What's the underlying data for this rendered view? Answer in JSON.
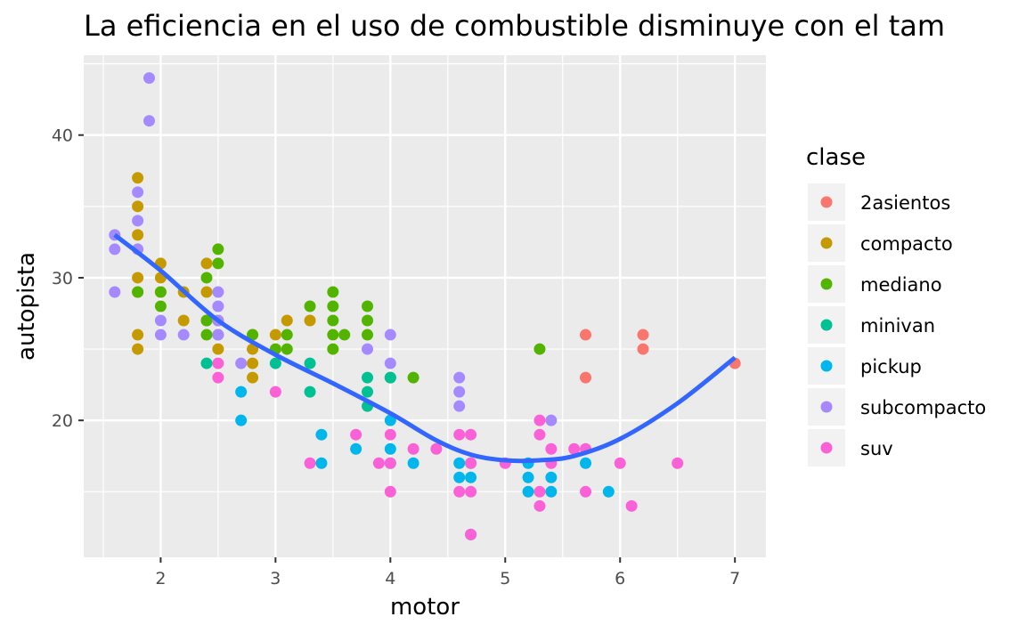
{
  "chart_data": {
    "type": "scatter",
    "title": "La eficiencia en el uso de combustible disminuye con el tam",
    "xlabel": "motor",
    "ylabel": "autopista",
    "xlim": [
      1.33,
      7.27
    ],
    "ylim": [
      10.4,
      45.6
    ],
    "x_ticks": [
      2,
      3,
      4,
      5,
      6,
      7
    ],
    "y_ticks": [
      20,
      30,
      40
    ],
    "grid": true,
    "legend": {
      "title": "clase",
      "placement": "right",
      "entries": [
        {
          "name": "2asientos",
          "color": "#F8766D"
        },
        {
          "name": "compacto",
          "color": "#C49A00"
        },
        {
          "name": "mediano",
          "color": "#53B400"
        },
        {
          "name": "minivan",
          "color": "#00C094"
        },
        {
          "name": "pickup",
          "color": "#00B6EB"
        },
        {
          "name": "subcompacto",
          "color": "#A58AFF"
        },
        {
          "name": "suv",
          "color": "#FB61D7"
        }
      ]
    },
    "series": [
      {
        "name": "2asientos",
        "color": "#F8766D",
        "points": [
          [
            5.7,
            26
          ],
          [
            5.7,
            23
          ],
          [
            6.2,
            26
          ],
          [
            6.2,
            25
          ],
          [
            7.0,
            24
          ]
        ]
      },
      {
        "name": "compacto",
        "color": "#C49A00",
        "points": [
          [
            1.8,
            37
          ],
          [
            1.8,
            35
          ],
          [
            1.8,
            33
          ],
          [
            1.8,
            30
          ],
          [
            1.8,
            29
          ],
          [
            1.8,
            26
          ],
          [
            1.8,
            25
          ],
          [
            2.0,
            31
          ],
          [
            2.0,
            30
          ],
          [
            2.0,
            29
          ],
          [
            2.2,
            29
          ],
          [
            2.2,
            27
          ],
          [
            2.4,
            31
          ],
          [
            2.4,
            29
          ],
          [
            2.4,
            27
          ],
          [
            2.5,
            27
          ],
          [
            2.5,
            25
          ],
          [
            2.8,
            26
          ],
          [
            2.8,
            25
          ],
          [
            2.8,
            24
          ],
          [
            2.8,
            23
          ],
          [
            3.0,
            26
          ],
          [
            3.1,
            27
          ],
          [
            3.3,
            27
          ]
        ]
      },
      {
        "name": "mediano",
        "color": "#53B400",
        "points": [
          [
            1.8,
            29
          ],
          [
            2.0,
            29
          ],
          [
            2.0,
            28
          ],
          [
            2.4,
            30
          ],
          [
            2.4,
            27
          ],
          [
            2.4,
            26
          ],
          [
            2.5,
            32
          ],
          [
            2.5,
            31
          ],
          [
            2.5,
            26
          ],
          [
            2.8,
            26
          ],
          [
            3.0,
            25
          ],
          [
            3.1,
            26
          ],
          [
            3.1,
            25
          ],
          [
            3.3,
            28
          ],
          [
            3.5,
            29
          ],
          [
            3.5,
            28
          ],
          [
            3.5,
            27
          ],
          [
            3.5,
            26
          ],
          [
            3.5,
            25
          ],
          [
            3.6,
            26
          ],
          [
            3.8,
            28
          ],
          [
            3.8,
            27
          ],
          [
            3.8,
            26
          ],
          [
            4.0,
            23
          ],
          [
            4.2,
            23
          ],
          [
            5.3,
            25
          ]
        ]
      },
      {
        "name": "minivan",
        "color": "#00C094",
        "points": [
          [
            2.4,
            24
          ],
          [
            3.0,
            24
          ],
          [
            3.3,
            24
          ],
          [
            3.3,
            22
          ],
          [
            3.8,
            23
          ],
          [
            3.8,
            22
          ],
          [
            3.8,
            21
          ],
          [
            4.0,
            23
          ]
        ]
      },
      {
        "name": "pickup",
        "color": "#00B6EB",
        "points": [
          [
            2.7,
            22
          ],
          [
            2.7,
            20
          ],
          [
            3.4,
            19
          ],
          [
            3.4,
            17
          ],
          [
            3.7,
            18
          ],
          [
            4.0,
            20
          ],
          [
            4.0,
            18
          ],
          [
            4.0,
            17
          ],
          [
            4.2,
            17
          ],
          [
            4.6,
            17
          ],
          [
            4.6,
            16
          ],
          [
            4.7,
            17
          ],
          [
            4.7,
            16
          ],
          [
            4.7,
            12
          ],
          [
            5.2,
            17
          ],
          [
            5.2,
            16
          ],
          [
            5.2,
            15
          ],
          [
            5.4,
            16
          ],
          [
            5.4,
            15
          ],
          [
            5.7,
            17
          ],
          [
            5.9,
            15
          ]
        ]
      },
      {
        "name": "subcompacto",
        "color": "#A58AFF",
        "points": [
          [
            1.6,
            33
          ],
          [
            1.6,
            32
          ],
          [
            1.6,
            29
          ],
          [
            1.8,
            36
          ],
          [
            1.8,
            34
          ],
          [
            1.8,
            32
          ],
          [
            1.9,
            44
          ],
          [
            1.9,
            41
          ],
          [
            2.0,
            27
          ],
          [
            2.0,
            26
          ],
          [
            2.2,
            26
          ],
          [
            2.5,
            29
          ],
          [
            2.5,
            28
          ],
          [
            2.5,
            27
          ],
          [
            2.5,
            26
          ],
          [
            2.7,
            24
          ],
          [
            3.8,
            25
          ],
          [
            4.0,
            26
          ],
          [
            4.0,
            24
          ],
          [
            4.6,
            23
          ],
          [
            4.6,
            22
          ],
          [
            4.6,
            21
          ],
          [
            5.4,
            20
          ]
        ]
      },
      {
        "name": "suv",
        "color": "#FB61D7",
        "points": [
          [
            2.5,
            24
          ],
          [
            2.5,
            23
          ],
          [
            3.0,
            22
          ],
          [
            3.3,
            17
          ],
          [
            3.7,
            19
          ],
          [
            3.9,
            17
          ],
          [
            4.0,
            19
          ],
          [
            4.0,
            17
          ],
          [
            4.0,
            15
          ],
          [
            4.2,
            18
          ],
          [
            4.4,
            18
          ],
          [
            4.6,
            19
          ],
          [
            4.6,
            15
          ],
          [
            4.7,
            19
          ],
          [
            4.7,
            17
          ],
          [
            4.7,
            15
          ],
          [
            4.7,
            12
          ],
          [
            5.0,
            17
          ],
          [
            5.3,
            20
          ],
          [
            5.3,
            19
          ],
          [
            5.3,
            15
          ],
          [
            5.3,
            14
          ],
          [
            5.4,
            18
          ],
          [
            5.4,
            17
          ],
          [
            5.6,
            18
          ],
          [
            5.7,
            18
          ],
          [
            5.7,
            15
          ],
          [
            6.0,
            17
          ],
          [
            6.1,
            14
          ],
          [
            6.5,
            17
          ]
        ]
      }
    ],
    "smooth": {
      "color": "#3366FF",
      "points": [
        [
          1.6,
          33.0
        ],
        [
          2.0,
          30.5
        ],
        [
          2.5,
          27.0
        ],
        [
          3.0,
          24.6
        ],
        [
          3.5,
          22.6
        ],
        [
          4.0,
          20.5
        ],
        [
          4.4,
          18.6
        ],
        [
          4.7,
          17.6
        ],
        [
          5.0,
          17.2
        ],
        [
          5.3,
          17.2
        ],
        [
          5.6,
          17.5
        ],
        [
          6.0,
          18.7
        ],
        [
          6.5,
          21.2
        ],
        [
          7.0,
          24.4
        ]
      ]
    }
  }
}
